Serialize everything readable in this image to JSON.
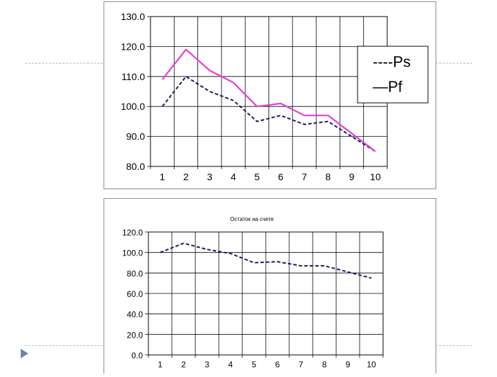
{
  "slide": {
    "bullet_icon": "triangle-bullet-icon",
    "accent_color": "#6b86a6"
  },
  "chart_data": [
    {
      "type": "line",
      "title": "",
      "categories": [
        "1",
        "2",
        "3",
        "4",
        "5",
        "6",
        "7",
        "8",
        "9",
        "10"
      ],
      "ylim": [
        80,
        130
      ],
      "yticks": [
        "80.0",
        "90.0",
        "100.0",
        "110.0",
        "120.0",
        "130.0"
      ],
      "grid": true,
      "legend": "right",
      "series": [
        {
          "name": "Ps",
          "legend_text": "----Ps",
          "color": "#1a1a5e",
          "style": "dashed",
          "values": [
            100,
            110,
            105,
            102,
            95,
            97,
            94,
            95,
            90,
            85
          ]
        },
        {
          "name": "Pf",
          "legend_text": "—Pf",
          "color": "#e040d0",
          "style": "solid",
          "values": [
            109,
            119,
            112,
            108,
            100,
            101,
            97,
            97,
            91,
            85
          ]
        }
      ]
    },
    {
      "type": "line",
      "title": "Остаток на счете",
      "categories": [
        "1",
        "2",
        "3",
        "4",
        "5",
        "6",
        "7",
        "8",
        "9",
        "10"
      ],
      "ylim": [
        0,
        120
      ],
      "yticks": [
        "0.0",
        "20.0",
        "40.0",
        "60.0",
        "80.0",
        "100.0",
        "120.0"
      ],
      "grid": true,
      "series": [
        {
          "color": "#1a1a5e",
          "style": "dashed",
          "values": [
            100,
            109,
            103,
            99,
            90,
            91,
            87,
            87,
            81,
            75
          ]
        }
      ]
    }
  ]
}
